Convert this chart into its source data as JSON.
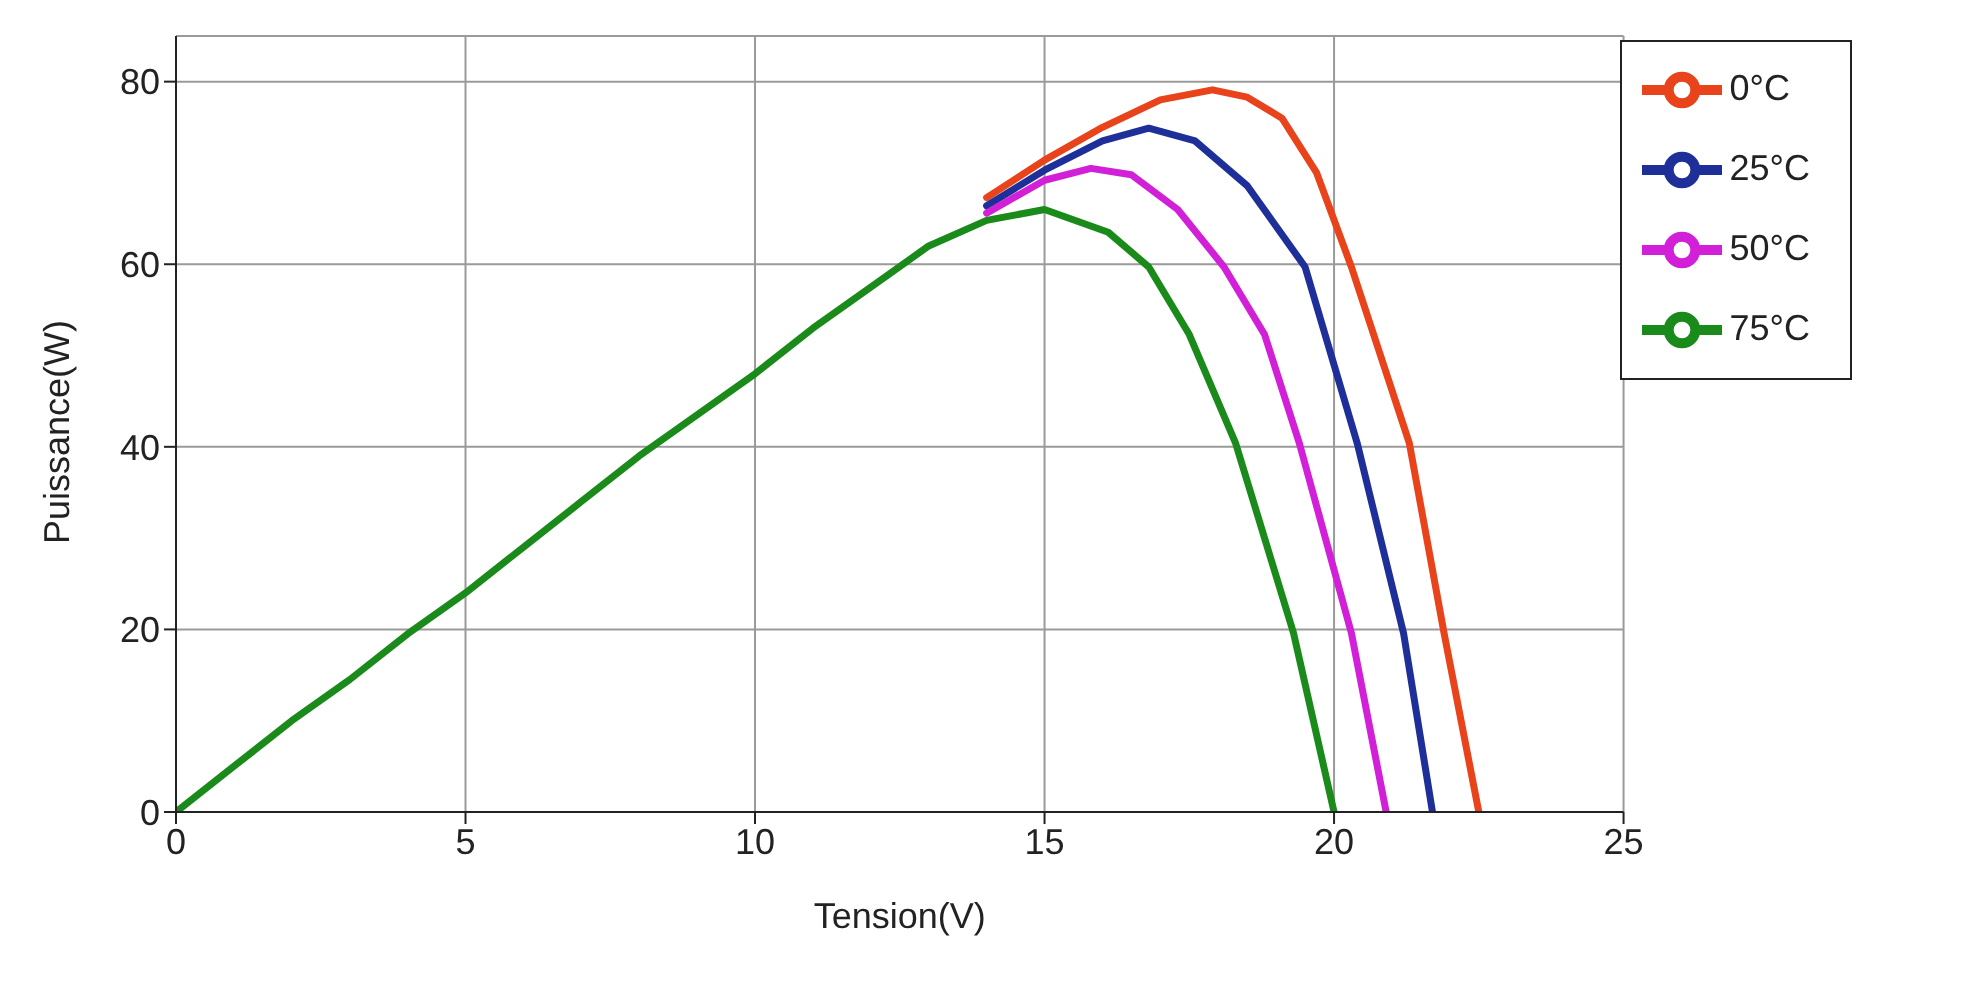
{
  "chart_data": {
    "type": "line",
    "xlabel": "Tension(V)",
    "ylabel": "Puissance(W)",
    "xlim": [
      0,
      25
    ],
    "xticks": [
      0,
      5,
      10,
      15,
      20,
      25
    ],
    "ylim": [
      0,
      85
    ],
    "yticks": [
      0,
      20,
      40,
      60,
      80
    ],
    "grid": true,
    "legend": "top right",
    "line_style": "solid",
    "marker": "none",
    "series": [
      {
        "name": "0°C",
        "color": "#e8431a",
        "x": [
          14,
          15,
          16,
          17,
          17.9,
          18.5,
          19.1,
          19.7,
          20.3,
          21.3,
          21.9,
          22.5
        ],
        "values": [
          67.3,
          71.4,
          75,
          78,
          79.1,
          78.3,
          76,
          70,
          59.7,
          40.4,
          19.6,
          0
        ]
      },
      {
        "name": "25°C",
        "color": "#1f2f9a",
        "x": [
          14,
          15,
          16,
          16.8,
          17.6,
          18.5,
          19.5,
          20.4,
          21.2,
          21.7
        ],
        "values": [
          66.4,
          70.3,
          73.5,
          74.9,
          73.5,
          68.6,
          59.7,
          40.4,
          19.6,
          0
        ]
      },
      {
        "name": "50°C",
        "color": "#d21fd8",
        "x": [
          14,
          15,
          15.8,
          16.5,
          17.3,
          18.1,
          18.8,
          19.4,
          20.3,
          20.9
        ],
        "values": [
          65.6,
          69.2,
          70.5,
          69.8,
          66,
          59.7,
          52.3,
          40.4,
          19.6,
          0
        ]
      },
      {
        "name": "75°C",
        "color": "#1a8a1a",
        "x": [
          0,
          1,
          2,
          3,
          4,
          5,
          6,
          7,
          8,
          9,
          10,
          11,
          12,
          13,
          14,
          15,
          16.1,
          16.8,
          17.5,
          18.3,
          19.3,
          20
        ],
        "values": [
          0,
          5,
          10,
          14.5,
          19.5,
          24,
          29,
          34,
          39,
          43.5,
          48,
          53,
          57.5,
          62,
          64.8,
          66,
          63.5,
          59.7,
          52.3,
          40.4,
          19.6,
          0
        ]
      }
    ]
  }
}
